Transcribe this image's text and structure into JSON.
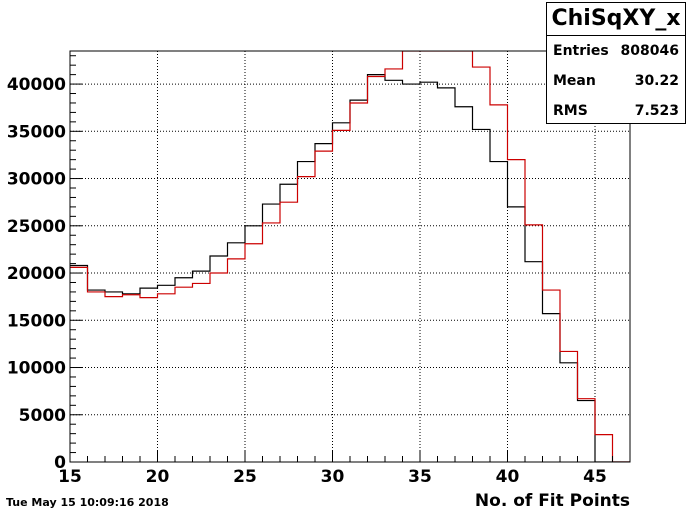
{
  "chart_data": {
    "type": "histogram",
    "title": "ChiSqXY_x",
    "xlabel": "No. of Fit Points",
    "ylabel": "",
    "xlim": [
      15,
      47
    ],
    "ylim": [
      0,
      43500
    ],
    "x_ticks": [
      15,
      20,
      25,
      30,
      35,
      40,
      45
    ],
    "y_ticks": [
      0,
      5000,
      10000,
      15000,
      20000,
      25000,
      30000,
      35000,
      40000
    ],
    "grid": true,
    "bin_edges": [
      15,
      16,
      17,
      18,
      19,
      20,
      21,
      22,
      23,
      24,
      25,
      26,
      27,
      28,
      29,
      30,
      31,
      32,
      33,
      34,
      35,
      36,
      37,
      38,
      39,
      40,
      41,
      42,
      43,
      44,
      45,
      46,
      47
    ],
    "series": [
      {
        "color": "#000000",
        "values": [
          20800,
          18200,
          18000,
          17800,
          18400,
          18700,
          19500,
          20200,
          21800,
          23200,
          25000,
          27300,
          29400,
          31800,
          33700,
          35900,
          38300,
          41000,
          40400,
          40000,
          40200,
          39600,
          37600,
          35200,
          31800,
          27000,
          21200,
          15700,
          10500,
          6500,
          0,
          0
        ]
      },
      {
        "color": "#cc0000",
        "values": [
          20600,
          18000,
          17500,
          17700,
          17400,
          17800,
          18500,
          18900,
          20000,
          21500,
          23100,
          25300,
          27500,
          30200,
          32900,
          35100,
          38000,
          40800,
          41600,
          43500,
          43500,
          43500,
          43500,
          41800,
          37800,
          32000,
          25100,
          18200,
          11700,
          6700,
          2900,
          0
        ]
      }
    ]
  },
  "stats": {
    "entries_label": "Entries",
    "entries_value": "808046",
    "mean_label": "Mean",
    "mean_value": "30.22",
    "rms_label": "RMS",
    "rms_value": "7.523"
  },
  "timestamp": "Tue May 15 10:09:16 2018"
}
